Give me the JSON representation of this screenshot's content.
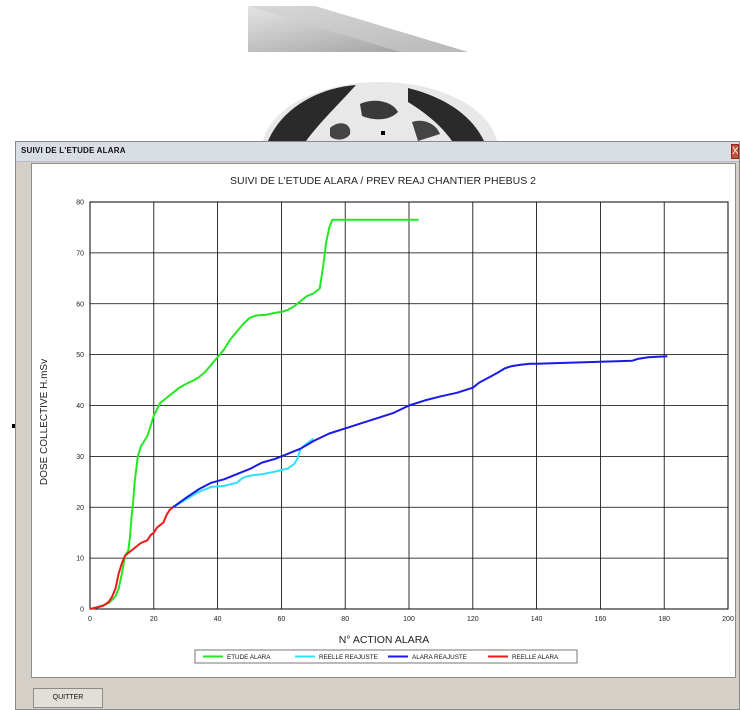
{
  "window": {
    "title": "SUIVI DE L'ETUDE ALARA",
    "close_label": "X",
    "quit_label": "QUITTER"
  },
  "colors": {
    "etude": "#22e822",
    "reelle_reajuste": "#2ee0ff",
    "alara_reajuste": "#1a1ae8",
    "reelle_alara": "#ee1a1a"
  },
  "chart_data": {
    "type": "line",
    "title": "SUIVI DE L'ETUDE ALARA / PREV REAJ CHANTIER PHEBUS 2",
    "xlabel": "N° ACTION ALARA",
    "ylabel": "DOSE COLLECTIVE H.mSv",
    "xlim": [
      0,
      200
    ],
    "ylim": [
      0,
      80
    ],
    "xticks": [
      0,
      20,
      40,
      60,
      80,
      100,
      120,
      140,
      160,
      180,
      200
    ],
    "yticks": [
      0,
      10,
      20,
      30,
      40,
      50,
      60,
      70,
      80
    ],
    "grid": true,
    "legend_position": "bottom",
    "series": [
      {
        "name": "ETUDE ALARA",
        "color_key": "etude",
        "x": [
          0,
          2,
          4,
          6,
          8,
          9,
          10,
          11,
          12,
          12.5,
          13,
          13.5,
          14,
          15,
          16,
          17,
          18,
          19,
          20,
          22,
          24,
          26,
          28,
          30,
          32,
          34,
          36,
          38,
          40,
          42,
          44,
          46,
          48,
          50,
          52,
          55,
          58,
          60,
          62,
          64,
          66,
          68,
          70,
          71,
          72,
          73,
          74,
          75,
          76,
          80,
          85,
          90,
          95,
          100,
          103
        ],
        "y": [
          0,
          0.3,
          0.7,
          1.2,
          2.5,
          4,
          7,
          10.5,
          11.5,
          14,
          18,
          21,
          25,
          30,
          32,
          33,
          34,
          36,
          38,
          40.5,
          41.5,
          42.5,
          43.5,
          44.2,
          44.8,
          45.5,
          46.5,
          48,
          49.5,
          51,
          53,
          54.5,
          56,
          57.2,
          57.7,
          57.8,
          58.2,
          58.4,
          58.8,
          59.5,
          60.5,
          61.5,
          62,
          62.5,
          63,
          67,
          72,
          75,
          76.5,
          76.5,
          76.5,
          76.5,
          76.5,
          76.5,
          76.5
        ]
      },
      {
        "name": "REELLE REAJUSTE",
        "color_key": "reelle_reajuste",
        "x": [
          26,
          30,
          34,
          38,
          42,
          46,
          48,
          50,
          54,
          58,
          62,
          64,
          65,
          66,
          68,
          70
        ],
        "y": [
          20,
          21.5,
          23,
          24,
          24.2,
          24.8,
          25.8,
          26.2,
          26.5,
          27,
          27.6,
          28.5,
          29.5,
          31.5,
          32.5,
          33.5
        ]
      },
      {
        "name": "ALARA REAJUSTE",
        "color_key": "alara_reajuste",
        "x": [
          26,
          30,
          34,
          38,
          42,
          46,
          50,
          54,
          58,
          62,
          66,
          70,
          75,
          80,
          85,
          90,
          95,
          100,
          105,
          110,
          115,
          120,
          122,
          125,
          128,
          130,
          132,
          135,
          138,
          140,
          145,
          150,
          155,
          160,
          165,
          170,
          172,
          175,
          178,
          181
        ],
        "y": [
          20,
          21.8,
          23.5,
          24.8,
          25.5,
          26.5,
          27.5,
          28.8,
          29.5,
          30.5,
          31.5,
          33,
          34.5,
          35.5,
          36.5,
          37.5,
          38.5,
          40,
          41,
          41.8,
          42.5,
          43.5,
          44.5,
          45.5,
          46.5,
          47.3,
          47.7,
          48,
          48.2,
          48.2,
          48.3,
          48.4,
          48.5,
          48.6,
          48.7,
          48.8,
          49.2,
          49.5,
          49.6,
          49.7
        ]
      },
      {
        "name": "REELLE ALARA",
        "color_key": "reelle_alara",
        "x": [
          0,
          2,
          4,
          5,
          6,
          7,
          8,
          9,
          10,
          11,
          12,
          13,
          14,
          15,
          16,
          18,
          19,
          20,
          21,
          22,
          23,
          24,
          25,
          26
        ],
        "y": [
          0,
          0.3,
          0.6,
          1,
          1.5,
          2.5,
          4,
          7,
          9,
          10.5,
          11,
          11.5,
          12,
          12.5,
          13,
          13.5,
          14.5,
          15,
          16,
          16.5,
          17,
          18.5,
          19.5,
          20
        ]
      }
    ]
  }
}
